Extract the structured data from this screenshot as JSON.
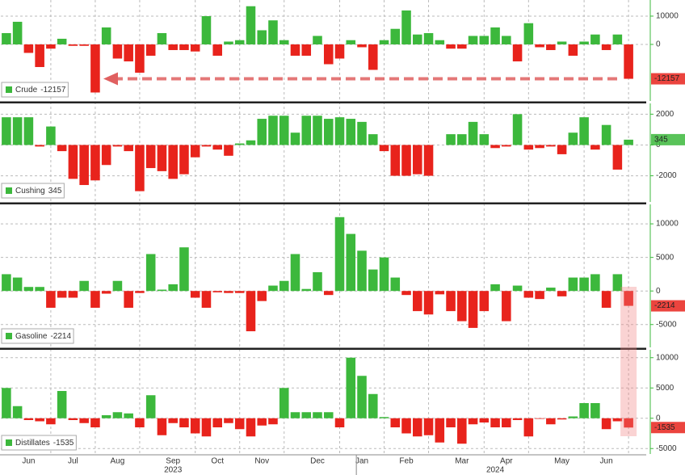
{
  "chart_data": [
    {
      "type": "bar",
      "positive_color": "#3cb83c",
      "negative_color": "#e8231c",
      "series": [
        {
          "name": "Crude",
          "values": [
            4000,
            8000,
            -3000,
            -8000,
            -1500,
            2000,
            -500,
            -500,
            -17000,
            6000,
            -5000,
            -6000,
            -10000,
            -4000,
            4000,
            -2000,
            -2000,
            -2500,
            10000,
            -4000,
            1000,
            1500,
            13500,
            5000,
            8500,
            1500,
            -4000,
            -4000,
            3000,
            -7000,
            -5000,
            1500,
            -1000,
            -9000,
            1500,
            5500,
            12000,
            3500,
            4000,
            1500,
            -1500,
            -1500,
            3000,
            3000,
            6000,
            3000,
            -6000,
            7500,
            -1000,
            -2000,
            1000,
            -4000,
            1000,
            3500,
            -2000,
            3500,
            -12157
          ]
        }
      ],
      "ylim": [
        -20000,
        15700
      ],
      "yticks": [
        0,
        10000
      ],
      "grid": true
    },
    {
      "type": "bar",
      "positive_color": "#3cb83c",
      "negative_color": "#e8231c",
      "series": [
        {
          "name": "Cushing",
          "values": [
            1800,
            1800,
            1800,
            -100,
            1200,
            -400,
            -2200,
            -2600,
            -2300,
            -1300,
            -100,
            -400,
            -3000,
            -1500,
            -1700,
            -2200,
            -1900,
            -800,
            -100,
            -300,
            -700,
            100,
            300,
            1700,
            1900,
            1900,
            800,
            1900,
            1900,
            1700,
            1800,
            1700,
            1500,
            700,
            -400,
            -2000,
            -2000,
            -1900,
            -2000,
            0,
            700,
            700,
            1500,
            700,
            -200,
            -100,
            2000,
            -300,
            -200,
            -100,
            -600,
            800,
            1800,
            -300,
            1300,
            -1600,
            345
          ]
        }
      ],
      "ylim": [
        -3700,
        2700
      ],
      "yticks": [
        -2000,
        0,
        2000
      ],
      "grid": true
    },
    {
      "type": "bar",
      "positive_color": "#3cb83c",
      "negative_color": "#e8231c",
      "series": [
        {
          "name": "Gasoline",
          "values": [
            2500,
            2000,
            600,
            600,
            -2500,
            -1000,
            -1000,
            1500,
            -2500,
            -400,
            1500,
            -2500,
            -300,
            5500,
            200,
            1000,
            6500,
            -1000,
            -2500,
            -200,
            -300,
            -300,
            -6000,
            -1500,
            800,
            1500,
            5500,
            300,
            2800,
            -600,
            11000,
            8500,
            6000,
            3200,
            5000,
            2000,
            -600,
            -3000,
            -3500,
            -500,
            -3000,
            -4500,
            -5500,
            -3000,
            1000,
            -4500,
            800,
            -1000,
            -1200,
            500,
            -800,
            2000,
            2000,
            2500,
            -2500,
            2500,
            -2214
          ]
        }
      ],
      "ylim": [
        -8400,
        12900
      ],
      "yticks": [
        -5000,
        0,
        5000,
        10000
      ],
      "grid": true
    },
    {
      "type": "bar",
      "positive_color": "#3cb83c",
      "negative_color": "#e8231c",
      "categories": [
        null,
        null,
        "Jun",
        null,
        null,
        null,
        "Jul",
        null,
        null,
        null,
        "Aug",
        null,
        null,
        null,
        null,
        "Sep",
        null,
        null,
        null,
        "Oct",
        null,
        null,
        null,
        "Nov",
        null,
        null,
        null,
        null,
        "Dec",
        null,
        null,
        null,
        "Jan",
        null,
        null,
        null,
        "Feb",
        null,
        null,
        null,
        null,
        "Mar",
        null,
        null,
        null,
        "Apr",
        null,
        null,
        null,
        null,
        "May",
        null,
        null,
        null,
        "Jun",
        null,
        null
      ],
      "years": [
        "2023",
        "2024"
      ],
      "series": [
        {
          "name": "Distillates",
          "values": [
            5000,
            2000,
            -300,
            -500,
            -1000,
            4500,
            -300,
            -800,
            -1500,
            500,
            1000,
            800,
            -1500,
            3800,
            -2800,
            -800,
            -1500,
            -2500,
            -3000,
            -1500,
            -800,
            -1800,
            -3000,
            -1200,
            -1000,
            5000,
            1000,
            1000,
            1000,
            1000,
            -1500,
            10000,
            7000,
            4000,
            200,
            -1500,
            -2500,
            -3000,
            -2800,
            -4000,
            -1500,
            -4200,
            -1000,
            -700,
            -1500,
            -1500,
            -300,
            -3000,
            -100,
            -1000,
            -200,
            300,
            2500,
            2500,
            -1800,
            -500,
            -1535
          ]
        }
      ],
      "ylim": [
        -5900,
        11300
      ],
      "yticks": [
        -5000,
        0,
        5000,
        10000
      ],
      "grid": true
    }
  ]
}
